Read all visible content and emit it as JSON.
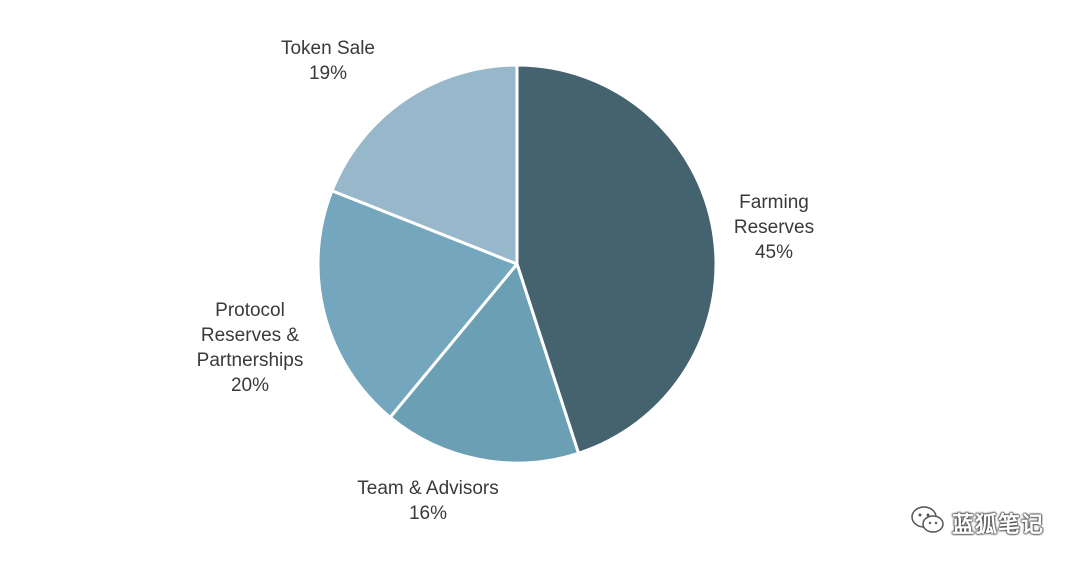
{
  "chart_data": {
    "type": "pie",
    "start_angle_deg": 0,
    "direction": "clockwise",
    "slices": [
      {
        "name": "Farming Reserves",
        "label_lines": [
          "Farming",
          "Reserves"
        ],
        "value": 45,
        "value_label": "45%",
        "color": "#44636f"
      },
      {
        "name": "Team & Advisors",
        "label_lines": [
          "Team & Advisors"
        ],
        "value": 16,
        "value_label": "16%",
        "color": "#6b9fb4"
      },
      {
        "name": "Protocol Reserves & Partnerships",
        "label_lines": [
          "Protocol",
          "Reserves &",
          "Partnerships"
        ],
        "value": 20,
        "value_label": "20%",
        "color": "#74a6bd"
      },
      {
        "name": "Token Sale",
        "label_lines": [
          "Token Sale"
        ],
        "value": 19,
        "value_label": "19%",
        "color": "#97b8ca"
      }
    ]
  },
  "watermark": {
    "text": "蓝狐笔记",
    "icon": "wechat-icon"
  }
}
